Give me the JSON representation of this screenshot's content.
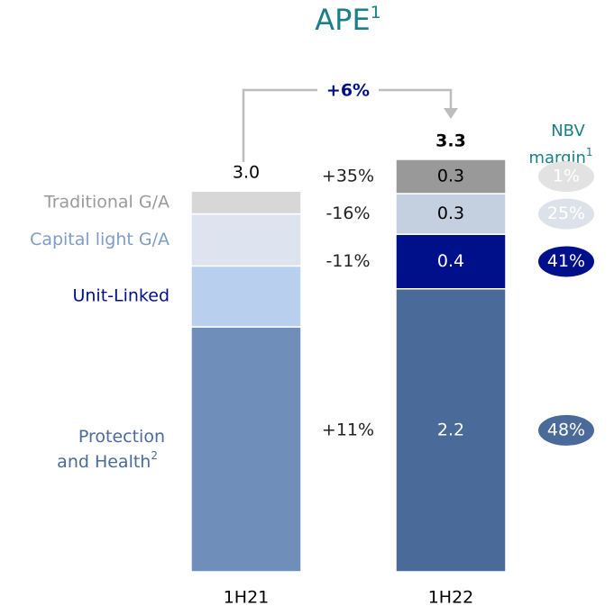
{
  "chart_data": {
    "type": "stacked_bar",
    "title": "APE",
    "title_note": "1",
    "categories": [
      "1H21",
      "1H22"
    ],
    "totals": [
      3.0,
      3.3
    ],
    "total_labels": [
      "3.0",
      "3.3"
    ],
    "growth_label": "+6%",
    "margin_title": "NBV margin",
    "margin_note": "1",
    "series": [
      {
        "name": "Protection and Health",
        "note": "2",
        "label_color": "#4a6b9a",
        "colors": [
          "#6f8fba",
          "#4a6b9a"
        ],
        "values": [
          1.93,
          2.23
        ],
        "value_labels": [
          null,
          "2.2"
        ],
        "change": "+11%",
        "margin": 48,
        "margin_label": "48%",
        "margin_color": "#4a6b9a",
        "margin_text_color": "#ffffff"
      },
      {
        "name": "Unit-Linked",
        "label_color": "#000f8a",
        "colors": [
          "#b8cfee",
          "#000f8a"
        ],
        "values": [
          0.48,
          0.43
        ],
        "value_labels": [
          null,
          "0.4"
        ],
        "change": "-11%",
        "margin": 41,
        "margin_label": "41%",
        "margin_color": "#000f8a",
        "margin_text_color": "#ffffff"
      },
      {
        "name": "Capital light G/A",
        "label_color": "#7f9cc9",
        "colors": [
          "#dde4ef",
          "#c4cfe0"
        ],
        "values": [
          0.41,
          0.32
        ],
        "value_labels": [
          null,
          "0.3"
        ],
        "change": "-16%",
        "margin": 25,
        "margin_label": "25%",
        "margin_color": "#dde2ea",
        "margin_text_color": "#ffffff"
      },
      {
        "name": "Traditional G/A",
        "label_color": "#9a9a9a",
        "colors": [
          "#d7d7d7",
          "#999999"
        ],
        "values": [
          0.18,
          0.27
        ],
        "value_labels": [
          null,
          "0.3"
        ],
        "change": "+35%",
        "margin": 1,
        "margin_label": "1%",
        "margin_color": "#e2e2e2",
        "margin_text_color": "#ffffff"
      }
    ]
  }
}
